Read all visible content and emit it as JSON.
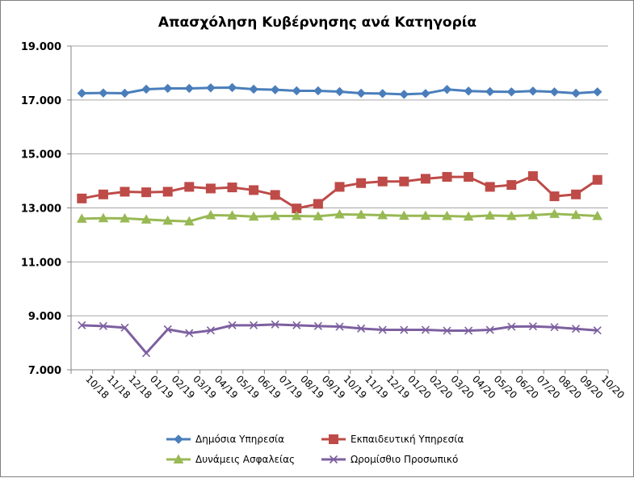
{
  "chart_data": {
    "type": "line",
    "title": "Απασχόληση Κυβέρνησης ανά Κατηγορία",
    "xlabel": "",
    "ylabel": "",
    "ylim": [
      7000,
      19000
    ],
    "yticks": [
      7000,
      9000,
      11000,
      13000,
      15000,
      17000,
      19000
    ],
    "ytick_labels": [
      "7.000",
      "9.000",
      "11.000",
      "13.000",
      "15.000",
      "17.000",
      "19.000"
    ],
    "grid": "horizontal",
    "legend_position": "bottom",
    "categories": [
      "10/18",
      "11/18",
      "12/18",
      "01/19",
      "02/19",
      "03/19",
      "04/19",
      "05/19",
      "06/19",
      "07/19",
      "08/19",
      "09/19",
      "10/19",
      "11/19",
      "12/19",
      "01/20",
      "02/20",
      "03/20",
      "04/20",
      "05/20",
      "06/20",
      "07/20",
      "08/20",
      "09/20",
      "10/20"
    ],
    "series": [
      {
        "name": "Δημόσια Υπηρεσία",
        "color": "#4a7ebb",
        "marker": "diamond",
        "values": [
          17250,
          17260,
          17250,
          17400,
          17430,
          17430,
          17450,
          17460,
          17400,
          17380,
          17340,
          17340,
          17310,
          17250,
          17240,
          17210,
          17240,
          17390,
          17330,
          17310,
          17300,
          17330,
          17300,
          17250,
          17300
        ]
      },
      {
        "name": "Εκπαιδευτική Υπηρεσία",
        "color": "#be4b48",
        "marker": "square",
        "values": [
          13350,
          13500,
          13600,
          13580,
          13600,
          13780,
          13720,
          13760,
          13660,
          13480,
          12980,
          13150,
          13780,
          13920,
          13980,
          13980,
          14080,
          14150,
          14150,
          13780,
          13850,
          14180,
          13430,
          13500,
          14040
        ]
      },
      {
        "name": "Δυνάμεις Ασφαλείας",
        "color": "#98b954",
        "marker": "triangle",
        "values": [
          12600,
          12620,
          12610,
          12570,
          12530,
          12500,
          12730,
          12720,
          12680,
          12700,
          12700,
          12690,
          12760,
          12750,
          12730,
          12710,
          12710,
          12700,
          12680,
          12720,
          12700,
          12730,
          12780,
          12740,
          12700
        ]
      },
      {
        "name": "Ωρομίσθιο Προσωπικό",
        "color": "#7d60a0",
        "marker": "x",
        "values": [
          8650,
          8620,
          8560,
          7620,
          8500,
          8360,
          8460,
          8650,
          8650,
          8680,
          8650,
          8620,
          8600,
          8530,
          8480,
          8480,
          8480,
          8450,
          8450,
          8480,
          8600,
          8610,
          8580,
          8520,
          8460
        ]
      }
    ]
  }
}
